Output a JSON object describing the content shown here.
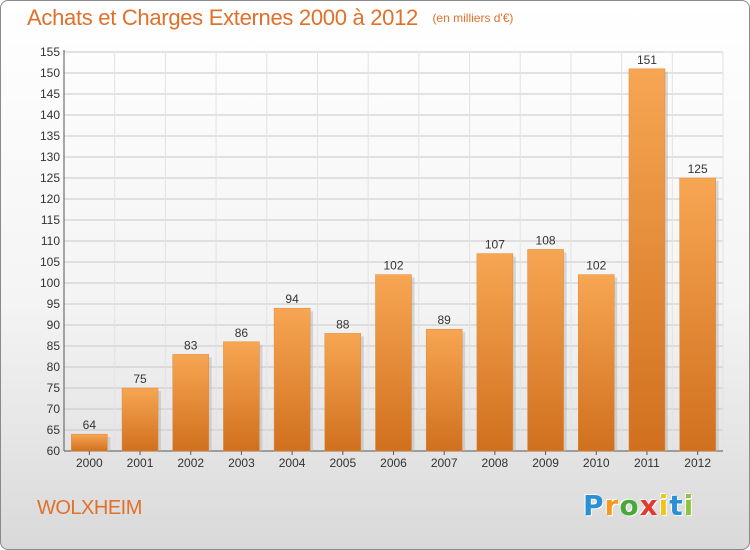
{
  "header": {
    "title": "Achats et Charges Externes 2000 à 2012",
    "unit": "(en milliers d'€)"
  },
  "footer": {
    "commune": "WOLXHEIM",
    "brand_letters": [
      {
        "char": "P",
        "color": "#2a8fd6"
      },
      {
        "char": "r",
        "color": "#f39a1f"
      },
      {
        "char": "o",
        "color": "#4aa83a"
      },
      {
        "char": "x",
        "color": "#e03a2f"
      },
      {
        "char": "i",
        "color": "#f0c419"
      },
      {
        "char": "t",
        "color": "#2a8fd6"
      },
      {
        "char": "i",
        "color": "#8cc43f"
      }
    ]
  },
  "colors": {
    "bar_top": "#f7a653",
    "bar_bottom": "#d0701e",
    "title": "#e0702a"
  },
  "chart_data": {
    "type": "bar",
    "title": "Achats et Charges Externes 2000 à 2012",
    "subtitle": "(en milliers d'€)",
    "categories": [
      "2000",
      "2001",
      "2002",
      "2003",
      "2004",
      "2005",
      "2006",
      "2007",
      "2008",
      "2009",
      "2010",
      "2011",
      "2012"
    ],
    "values": [
      64,
      75,
      83,
      86,
      94,
      88,
      102,
      89,
      107,
      108,
      102,
      151,
      125
    ],
    "ylim": [
      60,
      155
    ],
    "yticks": [
      60,
      65,
      70,
      75,
      80,
      85,
      90,
      95,
      100,
      105,
      110,
      115,
      120,
      125,
      130,
      135,
      140,
      145,
      150,
      155
    ],
    "grid": true,
    "xlabel": "",
    "ylabel": ""
  }
}
